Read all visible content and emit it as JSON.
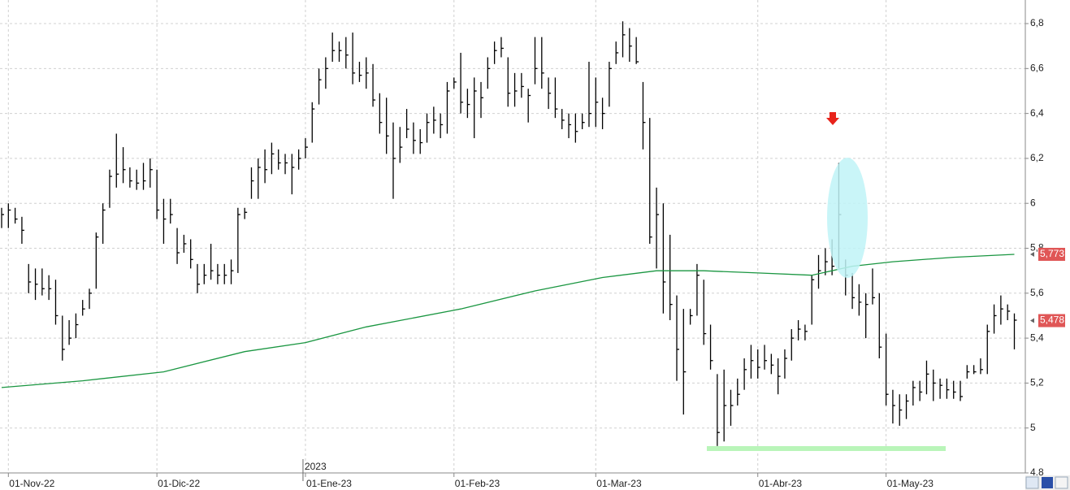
{
  "chart_data": {
    "type": "hlc",
    "categories": [
      null,
      "01-Nov-22",
      null,
      null,
      null,
      null,
      null,
      null,
      null,
      null,
      null,
      null,
      null,
      null,
      null,
      null,
      null,
      null,
      null,
      null,
      null,
      null,
      null,
      "01-Dic-22",
      null,
      null,
      null,
      null,
      null,
      null,
      null,
      null,
      null,
      null,
      null,
      null,
      null,
      null,
      null,
      null,
      null,
      null,
      null,
      null,
      null,
      "01-Ene-23",
      null,
      null,
      null,
      null,
      null,
      null,
      null,
      null,
      null,
      null,
      null,
      null,
      null,
      null,
      null,
      null,
      null,
      null,
      null,
      null,
      null,
      "01-Feb-23",
      null,
      null,
      null,
      null,
      null,
      null,
      null,
      null,
      null,
      null,
      null,
      null,
      null,
      null,
      null,
      null,
      null,
      null,
      null,
      null,
      "01-Mar-23",
      null,
      null,
      null,
      null,
      null,
      null,
      null,
      null,
      null,
      null,
      null,
      null,
      null,
      null,
      null,
      null,
      null,
      null,
      null,
      null,
      null,
      null,
      null,
      "01-Abr-23",
      null,
      null,
      null,
      null,
      null,
      null,
      null,
      null,
      null,
      null,
      null,
      null,
      null,
      null,
      null,
      null,
      null,
      null,
      "01-May-23",
      null,
      null,
      null,
      null,
      null,
      null,
      null,
      null,
      null,
      null,
      null,
      null,
      null,
      null,
      null,
      null,
      null,
      null,
      null
    ],
    "high": [
      5.98,
      6.0,
      5.98,
      5.94,
      5.73,
      5.71,
      5.71,
      5.68,
      5.66,
      5.5,
      5.48,
      5.51,
      5.57,
      5.62,
      5.87,
      6.0,
      6.15,
      6.31,
      6.25,
      6.16,
      6.15,
      6.18,
      6.2,
      6.15,
      6.02,
      6.02,
      5.89,
      5.86,
      5.84,
      5.73,
      5.73,
      5.82,
      5.73,
      5.73,
      5.75,
      5.98,
      5.98,
      6.16,
      6.2,
      6.24,
      6.27,
      6.24,
      6.22,
      6.22,
      6.24,
      6.29,
      6.45,
      6.6,
      6.65,
      6.76,
      6.72,
      6.74,
      6.76,
      6.63,
      6.65,
      6.62,
      6.49,
      6.47,
      6.36,
      6.34,
      6.42,
      6.36,
      6.33,
      6.4,
      6.43,
      6.4,
      6.54,
      6.56,
      6.67,
      6.51,
      6.56,
      6.54,
      6.65,
      6.72,
      6.74,
      6.65,
      6.58,
      6.58,
      6.51,
      6.74,
      6.74,
      6.56,
      6.56,
      6.42,
      6.4,
      6.4,
      6.4,
      6.63,
      6.56,
      6.47,
      6.63,
      6.72,
      6.81,
      6.78,
      6.74,
      6.54,
      6.38,
      6.07,
      6.0,
      5.86,
      5.59,
      5.53,
      5.53,
      5.73,
      5.66,
      5.46,
      5.24,
      5.26,
      5.17,
      5.22,
      5.31,
      5.37,
      5.35,
      5.37,
      5.33,
      5.31,
      5.35,
      5.44,
      5.48,
      5.46,
      5.68,
      5.77,
      5.8,
      5.84,
      6.18,
      5.75,
      5.69,
      5.64,
      5.6,
      5.71,
      5.6,
      5.42,
      5.17,
      5.15,
      5.15,
      5.21,
      5.21,
      5.3,
      5.26,
      5.22,
      5.22,
      5.21,
      5.21,
      5.28,
      5.28,
      5.31,
      5.46,
      5.55,
      5.59,
      5.55,
      5.51
    ],
    "low": [
      5.89,
      5.89,
      5.91,
      5.82,
      5.6,
      5.57,
      5.59,
      5.57,
      5.46,
      5.3,
      5.37,
      5.4,
      5.5,
      5.53,
      5.62,
      5.82,
      5.98,
      6.07,
      6.09,
      6.07,
      6.06,
      6.06,
      6.07,
      5.93,
      5.82,
      5.91,
      5.73,
      5.78,
      5.71,
      5.6,
      5.64,
      5.66,
      5.64,
      5.64,
      5.64,
      5.69,
      5.93,
      6.02,
      6.02,
      6.09,
      6.13,
      6.15,
      6.13,
      6.04,
      6.15,
      6.2,
      6.27,
      6.44,
      6.51,
      6.63,
      6.63,
      6.6,
      6.53,
      6.54,
      6.51,
      6.43,
      6.31,
      6.22,
      6.02,
      6.18,
      6.29,
      6.22,
      6.22,
      6.27,
      6.31,
      6.29,
      6.31,
      6.51,
      6.4,
      6.38,
      6.29,
      6.38,
      6.51,
      6.62,
      6.65,
      6.43,
      6.43,
      6.47,
      6.36,
      6.53,
      6.51,
      6.42,
      6.38,
      6.33,
      6.29,
      6.27,
      6.33,
      6.34,
      6.34,
      6.33,
      6.43,
      6.62,
      6.65,
      6.63,
      6.62,
      6.24,
      5.82,
      5.71,
      5.51,
      5.48,
      5.21,
      5.06,
      5.46,
      5.5,
      5.37,
      5.26,
      4.92,
      4.94,
      5.01,
      5.1,
      5.17,
      5.22,
      5.22,
      5.26,
      5.24,
      5.15,
      5.22,
      5.3,
      5.39,
      5.39,
      5.46,
      5.62,
      5.68,
      5.68,
      5.71,
      5.59,
      5.53,
      5.5,
      5.4,
      5.55,
      5.31,
      5.1,
      5.02,
      5.01,
      5.04,
      5.1,
      5.12,
      5.15,
      5.12,
      5.13,
      5.13,
      5.13,
      5.12,
      5.22,
      5.24,
      5.24,
      5.24,
      5.42,
      5.46,
      5.48,
      5.35
    ],
    "close": [
      5.95,
      5.97,
      5.93,
      5.88,
      5.65,
      5.64,
      5.62,
      5.62,
      5.5,
      5.35,
      5.4,
      5.46,
      5.53,
      5.6,
      5.85,
      5.97,
      6.12,
      6.13,
      6.15,
      6.1,
      6.09,
      6.1,
      6.15,
      5.97,
      5.93,
      5.95,
      5.78,
      5.82,
      5.75,
      5.64,
      5.68,
      5.7,
      5.68,
      5.68,
      5.7,
      5.95,
      5.96,
      6.1,
      6.16,
      6.15,
      6.22,
      6.18,
      6.18,
      6.16,
      6.2,
      6.25,
      6.42,
      6.55,
      6.6,
      6.68,
      6.68,
      6.66,
      6.58,
      6.57,
      6.58,
      6.46,
      6.36,
      6.3,
      6.2,
      6.25,
      6.33,
      6.28,
      6.27,
      6.36,
      6.37,
      6.35,
      6.5,
      6.54,
      6.45,
      6.44,
      6.5,
      6.47,
      6.6,
      6.68,
      6.69,
      6.49,
      6.5,
      6.52,
      6.48,
      6.6,
      6.58,
      6.49,
      6.42,
      6.37,
      6.35,
      6.32,
      6.36,
      6.4,
      6.45,
      6.4,
      6.6,
      6.67,
      6.75,
      6.7,
      6.63,
      6.36,
      5.85,
      5.95,
      5.65,
      5.55,
      5.35,
      5.25,
      5.5,
      5.68,
      5.42,
      5.3,
      4.98,
      5.1,
      5.1,
      5.15,
      5.26,
      5.3,
      5.27,
      5.3,
      5.28,
      5.23,
      5.31,
      5.4,
      5.44,
      5.43,
      5.66,
      5.7,
      5.74,
      5.72,
      5.95,
      5.68,
      5.58,
      5.56,
      5.55,
      5.58,
      5.36,
      5.15,
      5.1,
      5.08,
      5.12,
      5.18,
      5.16,
      5.24,
      5.2,
      5.19,
      5.17,
      5.16,
      5.14,
      5.25,
      5.25,
      5.26,
      5.43,
      5.5,
      5.53,
      5.52,
      5.48
    ],
    "color": "#000000",
    "moving_average": {
      "color": "#1a9641",
      "x": [
        0,
        12,
        24,
        36,
        45,
        54,
        68,
        79,
        89,
        97,
        104,
        112,
        120,
        126,
        132,
        141,
        150
      ],
      "values": [
        5.18,
        5.21,
        5.25,
        5.34,
        5.38,
        5.45,
        5.53,
        5.61,
        5.67,
        5.7,
        5.7,
        5.69,
        5.68,
        5.72,
        5.74,
        5.76,
        5.773
      ]
    },
    "price_labels": [
      {
        "value": 5.773,
        "label": "5,773"
      },
      {
        "value": 5.478,
        "label": "5,478"
      }
    ],
    "price_label_color": "#e05656",
    "year_marker": {
      "index": 45,
      "label": "2023"
    },
    "ylim": [
      4.8,
      6.905
    ],
    "yticks": [
      {
        "value": 4.8,
        "label": "4,8"
      },
      5,
      {
        "value": 5.2,
        "label": "5,2"
      },
      {
        "value": 5.4,
        "label": "5,4"
      },
      {
        "value": 5.6,
        "label": "5,6"
      },
      {
        "value": 5.8,
        "label": "5,8"
      },
      6,
      {
        "value": 6.2,
        "label": "6,2"
      },
      {
        "value": 6.4,
        "label": "6,4"
      },
      {
        "value": 6.6,
        "label": "6,6"
      },
      {
        "value": 6.8,
        "label": "6,8"
      }
    ],
    "grid": true
  }
}
